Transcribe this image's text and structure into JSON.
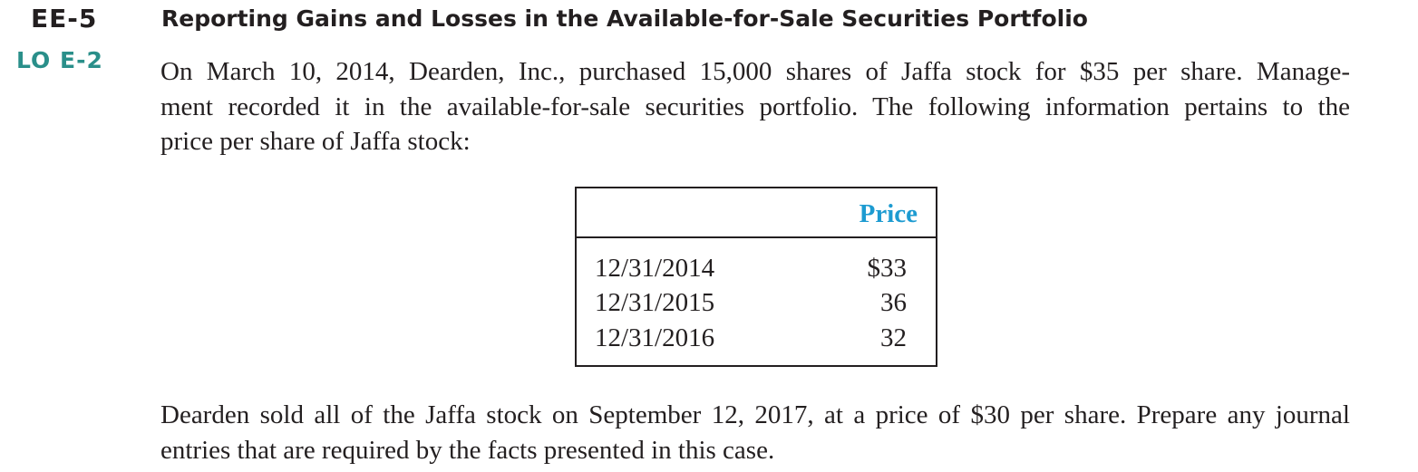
{
  "exercise": {
    "number": "EE-5",
    "objective": "LO E-2",
    "title": "Reporting Gains and Losses in the Available-for-Sale Securities Portfolio"
  },
  "intro": {
    "lines": [
      "On March 10, 2014, Dearden, Inc., purchased 15,000 shares of  Jaffa stock for $35 per share. Manage-",
      "ment recorded it in the available-for-sale securities portfolio. The following information pertains to the",
      "price per share of Jaffa stock:"
    ]
  },
  "price_table": {
    "header": "Price",
    "rows": [
      {
        "date": "12/31/2014",
        "price": "$33"
      },
      {
        "date": "12/31/2015",
        "price": "36"
      },
      {
        "date": "12/31/2016",
        "price": "32"
      }
    ]
  },
  "closing": {
    "lines": [
      "Dearden sold all of the Jaffa stock on September 12, 2017, at a price of $30 per share. Prepare any journal",
      "entries that are required by the facts presented in this case."
    ]
  },
  "colors": {
    "text": "#231f20",
    "objective": "#2a8f8a",
    "table_header": "#1d9bd1"
  }
}
